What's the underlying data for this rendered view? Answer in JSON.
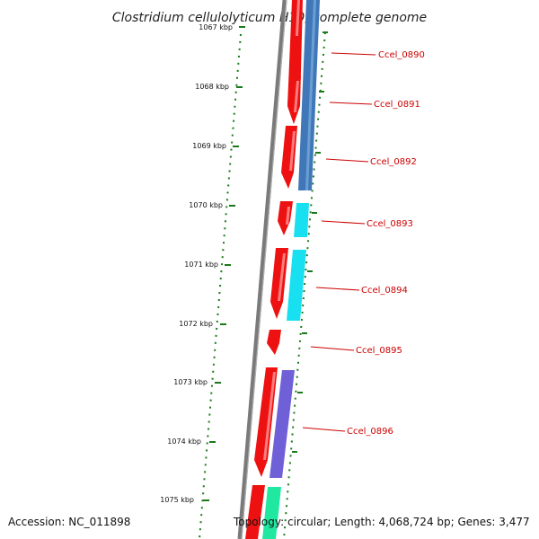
{
  "title": "Clostridium cellulolyticum H10, complete genome",
  "accession": "Accession: NC_011898",
  "summary": "Topology: circular; Length: 4,068,724 bp; Genes: 3,477",
  "ticks": [
    "1067 kbp",
    "1068 kbp",
    "1069 kbp",
    "1070 kbp",
    "1071 kbp",
    "1072 kbp",
    "1073 kbp",
    "1074 kbp",
    "1075 kbp"
  ],
  "gene_labels": [
    "Ccel_0890",
    "Ccel_0891",
    "Ccel_0892",
    "Ccel_0893",
    "Ccel_0894",
    "Ccel_0895",
    "Ccel_0896"
  ],
  "colors": {
    "backbone": "#7a7a7a",
    "cds": "#ee1111",
    "feature_steel": "#3f77b8",
    "feature_cyan": "#18e0f0",
    "feature_purple": "#7060d8",
    "feature_green": "#20e8a0",
    "ruler_dots": "#1a7a1a",
    "label": "#cc0000"
  }
}
